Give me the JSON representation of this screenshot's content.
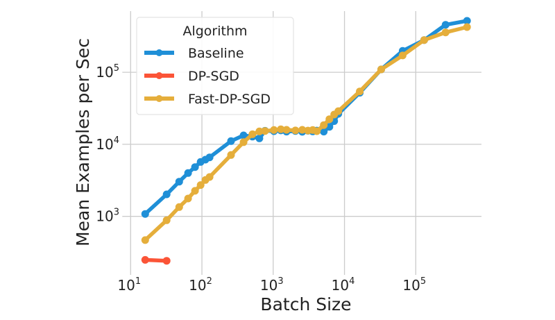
{
  "chart_data": {
    "type": "line",
    "title": "",
    "xlabel": "Batch Size",
    "ylabel": "Mean Examples per Sec",
    "xscale": "log",
    "yscale": "log",
    "xlim": [
      10,
      1000000
    ],
    "ylim": [
      150,
      750000
    ],
    "grid": true,
    "x_ticks": [
      {
        "base": "10",
        "exp": "1",
        "value": 10
      },
      {
        "base": "10",
        "exp": "2",
        "value": 100
      },
      {
        "base": "10",
        "exp": "3",
        "value": 1000
      },
      {
        "base": "10",
        "exp": "4",
        "value": 10000
      },
      {
        "base": "10",
        "exp": "5",
        "value": 100000
      }
    ],
    "y_ticks": [
      {
        "base": "10",
        "exp": "3",
        "value": 1000
      },
      {
        "base": "10",
        "exp": "4",
        "value": 10000
      },
      {
        "base": "10",
        "exp": "5",
        "value": 100000
      }
    ],
    "legend": {
      "title": "Algorithm",
      "position": "top-left"
    },
    "series": [
      {
        "name": "Baseline",
        "color": "#1f8fd7",
        "x": [
          16,
          32,
          48,
          64,
          80,
          96,
          112,
          128,
          256,
          384,
          512,
          640,
          768,
          1024,
          1280,
          1536,
          2048,
          2560,
          3072,
          3584,
          4096,
          5120,
          6144,
          7168,
          8192,
          16384,
          32768,
          65536,
          131072,
          262144,
          524288
        ],
        "y": [
          1080,
          2020,
          3030,
          3990,
          4830,
          5690,
          6120,
          6590,
          11070,
          13300,
          12800,
          12100,
          15400,
          15200,
          15600,
          15000,
          15300,
          14900,
          15400,
          15100,
          15500,
          15000,
          17500,
          21000,
          26500,
          52000,
          109600,
          198000,
          280000,
          456000,
          518000
        ]
      },
      {
        "name": "DP-SGD",
        "color": "#fb5437",
        "x": [
          16,
          32
        ],
        "y": [
          249,
          242
        ]
      },
      {
        "name": "Fast-DP-SGD",
        "color": "#e5ae3b",
        "x": [
          16,
          32,
          48,
          64,
          80,
          96,
          112,
          128,
          256,
          384,
          512,
          640,
          768,
          1024,
          1280,
          1536,
          2048,
          2560,
          3072,
          3584,
          4096,
          5120,
          6144,
          7168,
          8192,
          16384,
          32768,
          65536,
          131072,
          262144,
          524288
        ],
        "y": [
          468,
          884,
          1346,
          1770,
          2260,
          2718,
          3200,
          3515,
          7114,
          10700,
          13800,
          15100,
          15300,
          15800,
          16200,
          15900,
          15600,
          15900,
          15500,
          15800,
          15200,
          18500,
          22300,
          25900,
          28900,
          54200,
          109600,
          171000,
          280000,
          357000,
          424000
        ]
      }
    ]
  }
}
